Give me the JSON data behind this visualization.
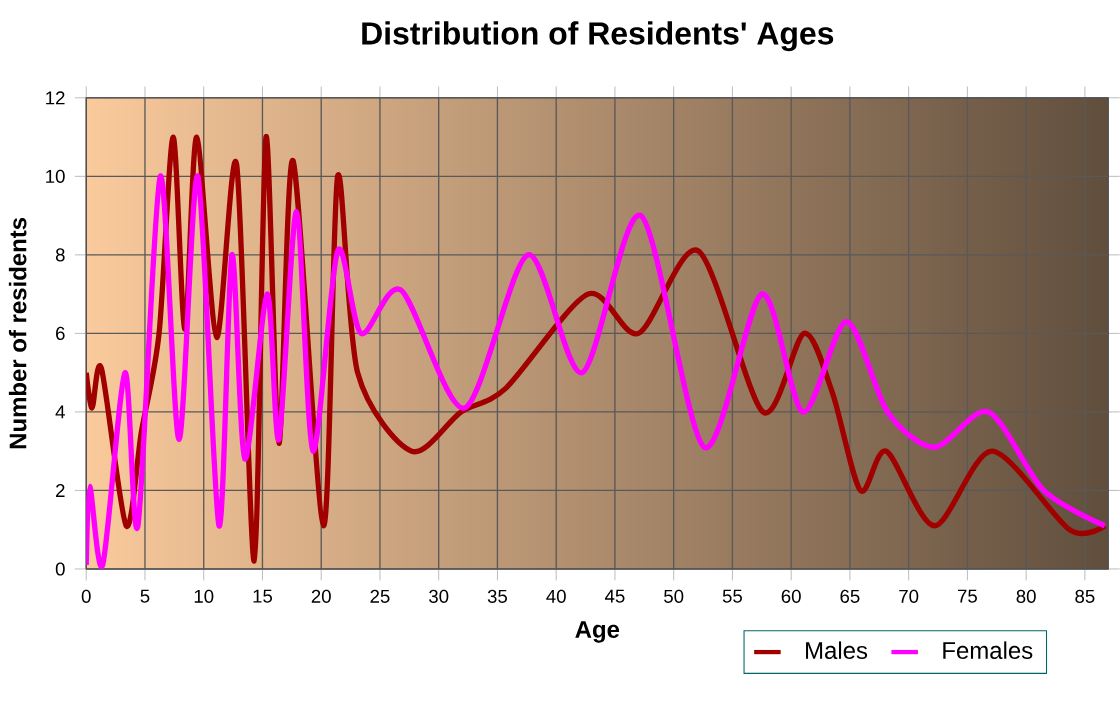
{
  "chart_data": {
    "type": "line",
    "title": "Distribution of Residents' Ages",
    "xlabel": "Age",
    "ylabel": "Number of residents",
    "xlim": [
      0,
      87
    ],
    "xticks": [
      0,
      5,
      10,
      15,
      20,
      25,
      30,
      35,
      40,
      45,
      50,
      55,
      60,
      65,
      70,
      75,
      80,
      85
    ],
    "ylim": [
      0,
      12
    ],
    "yticks": [
      0,
      2,
      4,
      6,
      8,
      10,
      12
    ],
    "grid": true,
    "legend": "bottom right",
    "series": [
      {
        "name": "Males",
        "color": "#a00000",
        "x": [
          0,
          0.5,
          1.3,
          3.4,
          4.7,
          6.2,
          7.4,
          8.4,
          9.4,
          11.1,
          12.8,
          14.3,
          15.3,
          16.4,
          17.6,
          20.2,
          21.4,
          23.1,
          27.7,
          31.9,
          35.7,
          42.7,
          47,
          52.1,
          57.6,
          61.1,
          63.5,
          65.9,
          68.1,
          72.2,
          77.1,
          83.7,
          86.7
        ],
        "values": [
          5,
          4.1,
          5.1,
          1.1,
          3.5,
          6,
          11,
          6.1,
          11,
          5.9,
          10.3,
          0.2,
          11,
          3.2,
          10.4,
          1.1,
          10,
          5,
          3,
          4,
          4.6,
          7,
          6,
          8.1,
          4,
          6,
          4.5,
          2,
          3,
          1.1,
          3,
          1,
          1.1
        ]
      },
      {
        "name": "Females",
        "color": "#ff00ff",
        "x": [
          0,
          0.3,
          1.4,
          3.3,
          4.4,
          6.3,
          7.9,
          9.5,
          11.3,
          12.4,
          13.5,
          15.4,
          16.4,
          17.9,
          19.3,
          21.4,
          23.4,
          26.8,
          32.2,
          37.6,
          42.2,
          47.2,
          52.6,
          57.5,
          61,
          64.7,
          68.2,
          72.2,
          76.8,
          81.5,
          86.7
        ],
        "values": [
          0.1,
          2.1,
          0.1,
          5,
          1.1,
          10,
          3.3,
          10,
          1.1,
          8,
          2.8,
          7,
          3.3,
          9.1,
          3,
          8.1,
          6,
          7.1,
          4.1,
          8,
          5,
          9,
          3.1,
          7,
          4,
          6.3,
          4,
          3.1,
          4,
          2,
          1.1
        ]
      }
    ]
  }
}
